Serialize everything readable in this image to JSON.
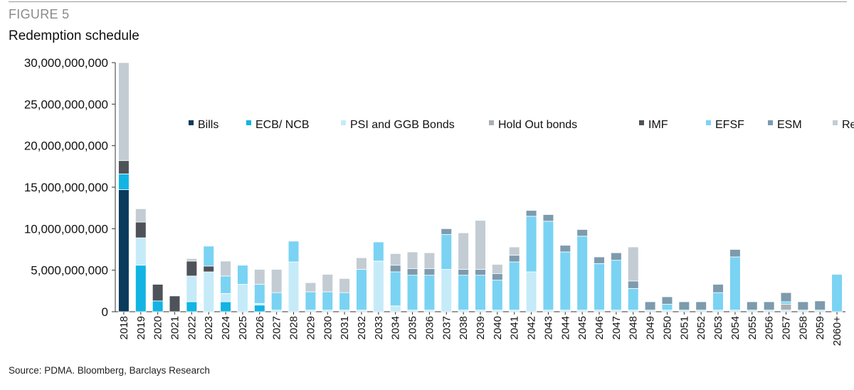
{
  "figure_label": "FIGURE 5",
  "title": "Redemption schedule",
  "source": "Source: PDMA. Bloomberg, Barclays Research",
  "chart_data": {
    "type": "bar",
    "stacked": true,
    "title": "Redemption schedule",
    "xlabel": "",
    "ylabel": "",
    "ylim": [
      0,
      30000000000
    ],
    "yticks": [
      0,
      5000000000,
      10000000000,
      15000000000,
      20000000000,
      25000000000,
      30000000000
    ],
    "ytick_labels": [
      "0",
      "5,000,000,000",
      "10,000,000,000",
      "15,000,000,000",
      "20,000,000,000",
      "25,000,000,000",
      "30,000,000,000"
    ],
    "grid": false,
    "legend_position": "top-center",
    "categories": [
      "2018",
      "2019",
      "2020",
      "2021",
      "2022",
      "2023",
      "2024",
      "2025",
      "2026",
      "2027",
      "2028",
      "2029",
      "2030",
      "2031",
      "2032",
      "2033",
      "2034",
      "2035",
      "2036",
      "2037",
      "2038",
      "2039",
      "2040",
      "2041",
      "2042",
      "2043",
      "2044",
      "2045",
      "2046",
      "2047",
      "2048",
      "2049",
      "2050",
      "2051",
      "2052",
      "2053",
      "2054",
      "2055",
      "2056",
      "2057",
      "2058",
      "2059",
      "2060+"
    ],
    "series": [
      {
        "name": "Bills",
        "color": "#0a3a5c",
        "values": [
          14700000000,
          0,
          0,
          0,
          0,
          0,
          0,
          0,
          0,
          0,
          0,
          0,
          0,
          0,
          0,
          0,
          0,
          0,
          0,
          0,
          0,
          0,
          0,
          0,
          0,
          0,
          0,
          0,
          0,
          0,
          0,
          0,
          0,
          0,
          0,
          0,
          0,
          0,
          0,
          0,
          0,
          0,
          0
        ]
      },
      {
        "name": "ECB/ NCB",
        "color": "#12b4e4",
        "values": [
          1900000000,
          5600000000,
          1300000000,
          0,
          1200000000,
          0,
          1200000000,
          0,
          800000000,
          0,
          0,
          0,
          0,
          0,
          0,
          0,
          0,
          0,
          0,
          0,
          0,
          0,
          0,
          0,
          0,
          0,
          0,
          0,
          0,
          0,
          0,
          0,
          0,
          0,
          0,
          0,
          0,
          0,
          0,
          0,
          0,
          0,
          0
        ]
      },
      {
        "name": "PSI and GGB Bonds",
        "color": "#c5ebf9",
        "values": [
          0,
          3300000000,
          0,
          0,
          3100000000,
          4800000000,
          1000000000,
          3300000000,
          200000000,
          200000000,
          6000000000,
          200000000,
          200000000,
          200000000,
          200000000,
          6100000000,
          700000000,
          200000000,
          200000000,
          5100000000,
          200000000,
          200000000,
          200000000,
          200000000,
          4800000000,
          200000000,
          200000000,
          200000000,
          200000000,
          200000000,
          200000000,
          200000000,
          200000000,
          200000000,
          200000000,
          200000000,
          200000000,
          200000000,
          200000000,
          200000000,
          200000000,
          200000000,
          0
        ]
      },
      {
        "name": "Hold Out bonds",
        "color": "#a9b0b5",
        "values": [
          0,
          0,
          0,
          0,
          0,
          0,
          0,
          0,
          0,
          0,
          0,
          0,
          0,
          0,
          0,
          0,
          0,
          0,
          0,
          0,
          0,
          0,
          0,
          0,
          0,
          0,
          0,
          0,
          0,
          0,
          0,
          0,
          0,
          0,
          0,
          0,
          0,
          0,
          0,
          700000000,
          0,
          0,
          0
        ]
      },
      {
        "name": "IMF",
        "color": "#4d5358",
        "values": [
          1600000000,
          1900000000,
          2000000000,
          1900000000,
          1800000000,
          700000000,
          0,
          0,
          0,
          0,
          0,
          0,
          0,
          0,
          0,
          0,
          0,
          0,
          0,
          0,
          0,
          0,
          0,
          0,
          0,
          0,
          0,
          0,
          0,
          0,
          0,
          0,
          0,
          0,
          0,
          0,
          0,
          0,
          0,
          0,
          0,
          0,
          0
        ]
      },
      {
        "name": "EFSF",
        "color": "#7ad3f3",
        "values": [
          0,
          0,
          0,
          0,
          0,
          2400000000,
          2100000000,
          2300000000,
          2300000000,
          2100000000,
          2500000000,
          2200000000,
          2200000000,
          2100000000,
          4900000000,
          2300000000,
          4100000000,
          4200000000,
          4200000000,
          4200000000,
          4200000000,
          4200000000,
          3600000000,
          5800000000,
          6700000000,
          10700000000,
          7000000000,
          8900000000,
          5600000000,
          6000000000,
          2600000000,
          0,
          700000000,
          0,
          0,
          2100000000,
          6400000000,
          0,
          0,
          300000000,
          0,
          0,
          4500000000
        ]
      },
      {
        "name": "ESM",
        "color": "#7d9bad",
        "values": [
          0,
          0,
          0,
          0,
          0,
          0,
          0,
          0,
          0,
          0,
          0,
          0,
          0,
          0,
          0,
          0,
          800000000,
          800000000,
          800000000,
          700000000,
          700000000,
          700000000,
          800000000,
          800000000,
          700000000,
          800000000,
          800000000,
          800000000,
          800000000,
          900000000,
          900000000,
          1000000000,
          900000000,
          1000000000,
          1000000000,
          1000000000,
          900000000,
          1000000000,
          1000000000,
          1100000000,
          1000000000,
          1100000000,
          0
        ]
      },
      {
        "name": "Repo/ Other",
        "color": "#c3ccd3",
        "values": [
          11800000000,
          1600000000,
          0,
          0,
          300000000,
          0,
          1800000000,
          0,
          1800000000,
          2800000000,
          0,
          1100000000,
          2100000000,
          1700000000,
          1400000000,
          0,
          1400000000,
          2000000000,
          1900000000,
          0,
          4400000000,
          5900000000,
          1100000000,
          1000000000,
          0,
          0,
          0,
          0,
          0,
          0,
          4100000000,
          0,
          0,
          0,
          0,
          0,
          0,
          0,
          0,
          0,
          0,
          0,
          0
        ]
      }
    ]
  }
}
